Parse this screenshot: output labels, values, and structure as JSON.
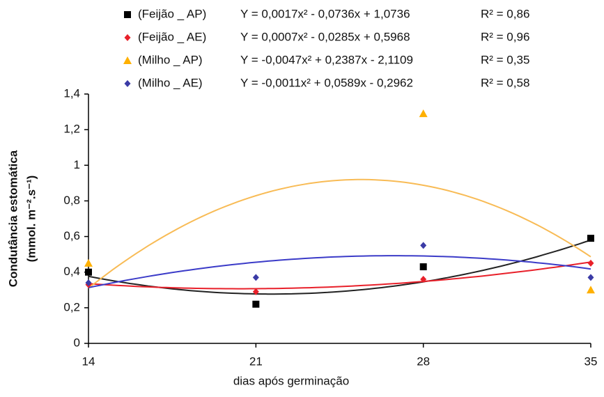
{
  "chart_data": {
    "type": "scatter",
    "x": [
      14,
      21,
      28,
      35
    ],
    "xlim": [
      14,
      35
    ],
    "xticks": [
      14,
      21,
      28,
      35
    ],
    "ylim": [
      0,
      1.4
    ],
    "yticks": [
      0,
      {
        "value": 0.2,
        "label": "0,2"
      },
      {
        "value": 0.4,
        "label": "0,4"
      },
      {
        "value": 0.6,
        "label": "0,6"
      },
      {
        "value": 0.8,
        "label": "0,8"
      },
      1,
      {
        "value": 1.2,
        "label": "1,2"
      },
      {
        "value": 1.4,
        "label": "1,4"
      }
    ],
    "x_label": "dias após germinação",
    "y_label": [
      "Condutância estomática",
      "(mmol. m⁻².s⁻¹)"
    ],
    "grid": false,
    "series": [
      {
        "name": "(Feijão _ AP)",
        "color": "#000000",
        "line_color": "#222222",
        "marker": "square",
        "values": [
          0.4,
          0.22,
          0.43,
          0.59
        ],
        "equation": "Y = 0,0017x² - 0,0736x + 1,0736",
        "r2": "R² = 0,86",
        "coefficients": [
          0.0017,
          -0.0736,
          1.0736
        ]
      },
      {
        "name": "(Feijão _ AE)",
        "color": "#e8202a",
        "line_color": "#e8202a",
        "marker": "diamond",
        "values": [
          0.33,
          0.29,
          0.36,
          0.45
        ],
        "equation": "Y = 0,0007x² - 0,0285x + 0,5968",
        "r2": "R² = 0,96",
        "coefficients": [
          0.0007,
          -0.0285,
          0.5968
        ]
      },
      {
        "name": "(Milho _ AP)",
        "color": "#ffb000",
        "line_color": "#f8bb55",
        "marker": "triangle",
        "values": [
          0.45,
          null,
          1.29,
          0.3
        ],
        "equation": "Y = -0,0047x² + 0,2387x - 2,1109",
        "r2": "R² = 0,35",
        "coefficients": [
          -0.0047,
          0.2387,
          -2.1109
        ]
      },
      {
        "name": "(Milho _ AE)",
        "color": "#3b3ba6",
        "line_color": "#3b3bc8",
        "marker": "diamond",
        "values": [
          0.34,
          0.37,
          0.55,
          0.37
        ],
        "equation": "Y = -0,0011x² + 0,0589x - 0,2962",
        "r2": "R² = 0,58",
        "coefficients": [
          -0.0011,
          0.0589,
          -0.2962
        ]
      }
    ]
  }
}
